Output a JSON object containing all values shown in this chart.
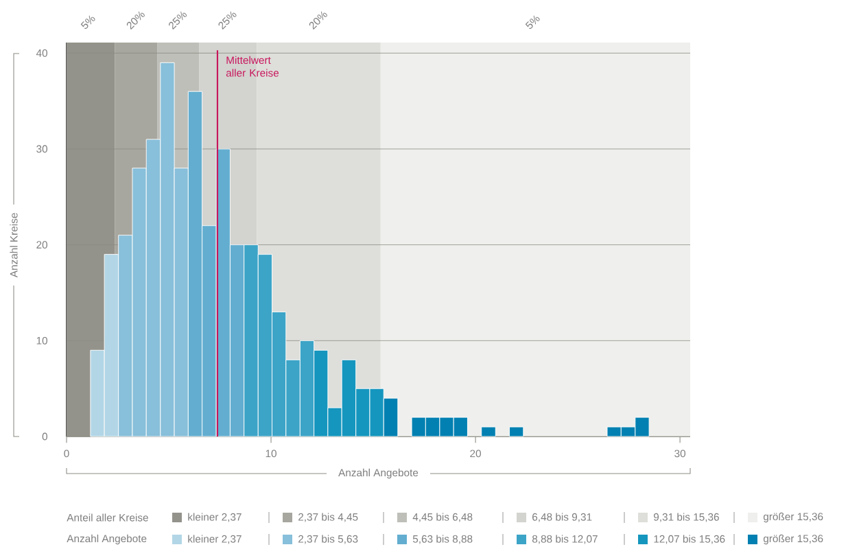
{
  "chart_data": {
    "type": "histogram",
    "xlabel": "Anzahl Angebote",
    "ylabel": "Anzahl Kreise",
    "bins": [
      1.17,
      1.85,
      2.54,
      3.22,
      3.9,
      4.59,
      5.27,
      5.95,
      6.63,
      7.32,
      8.0,
      8.68,
      9.37,
      10.05,
      10.73,
      11.42,
      12.1,
      12.78,
      13.46,
      14.15,
      14.83,
      15.51,
      16.2,
      16.88,
      17.56,
      18.25,
      18.93,
      19.61,
      20.29,
      20.98,
      21.66,
      22.34,
      23.03,
      23.71,
      24.39,
      25.08,
      25.76,
      26.44,
      27.12,
      27.81,
      28.49
    ],
    "values": [
      9,
      19,
      21,
      28,
      31,
      39,
      28,
      36,
      22,
      30,
      20,
      20,
      19,
      13,
      8,
      10,
      9,
      3,
      8,
      5,
      5,
      4,
      0,
      2,
      2,
      2,
      2,
      0,
      1,
      0,
      1,
      0,
      0,
      0,
      0,
      0,
      0,
      1,
      1,
      2
    ],
    "colors": [
      "#b2d6e6",
      "#b2d6e6",
      "#88bfda",
      "#88bfda",
      "#88bfda",
      "#88bfda",
      "#88bfda",
      "#63aed0",
      "#63aed0",
      "#63aed0",
      "#63aed0",
      "#3ca4c7",
      "#3ca4c7",
      "#3ca4c7",
      "#3ca4c7",
      "#3ca4c7",
      "#1596be",
      "#1596be",
      "#1596be",
      "#1596be",
      "#1596be",
      "#0280b1",
      "#0280b1",
      "#0280b1",
      "#0280b1",
      "#0280b1",
      "#0280b1",
      "#0280b1",
      "#0280b1",
      "#0280b1",
      "#0280b1",
      "#0280b1",
      "#0280b1",
      "#0280b1",
      "#0280b1",
      "#0280b1",
      "#0280b1",
      "#0280b1",
      "#0280b1",
      "#0280b1"
    ],
    "xlim": [
      0,
      30.5
    ],
    "ylim": [
      0,
      41.1
    ],
    "xticks": [
      0,
      10,
      20,
      30
    ],
    "yticks": [
      0,
      10,
      20,
      30,
      40
    ],
    "grid": "y",
    "ref_lines": [
      {
        "axis": "x",
        "value": 7.38,
        "label": "Mittelwert aller Kreise",
        "color": "#c8175d"
      }
    ],
    "bands": [
      {
        "axis": "x",
        "from": 0,
        "to": 2.37,
        "label": "5%",
        "color": "#94938b"
      },
      {
        "axis": "x",
        "from": 2.37,
        "to": 4.45,
        "label": "20%",
        "color": "#a8a79f"
      },
      {
        "axis": "x",
        "from": 4.45,
        "to": 6.48,
        "label": "25%",
        "color": "#bfbfb9"
      },
      {
        "axis": "x",
        "from": 6.48,
        "to": 9.31,
        "label": "25%",
        "color": "#d3d3cf"
      },
      {
        "axis": "x",
        "from": 9.31,
        "to": 15.36,
        "label": "20%",
        "color": "#dededa"
      },
      {
        "axis": "x",
        "from": 15.36,
        "to": 30.5,
        "label": "5%",
        "color": "#efefed"
      }
    ],
    "annotations": [
      "Anteil aller Kreise",
      "kleiner 2,37",
      "2,37 bis 4,45",
      "4,45 bis 6,48",
      "6,48 bis 9,31",
      "9,31 bis 15,36",
      "größer 15,36",
      "Anzahl Angebote",
      "kleiner 2,37",
      "2,37 bis 5,63",
      "5,63 bis 8,88",
      "8,88 bis 12,07",
      "12,07 bis 15,36",
      "größer 15,36"
    ]
  }
}
